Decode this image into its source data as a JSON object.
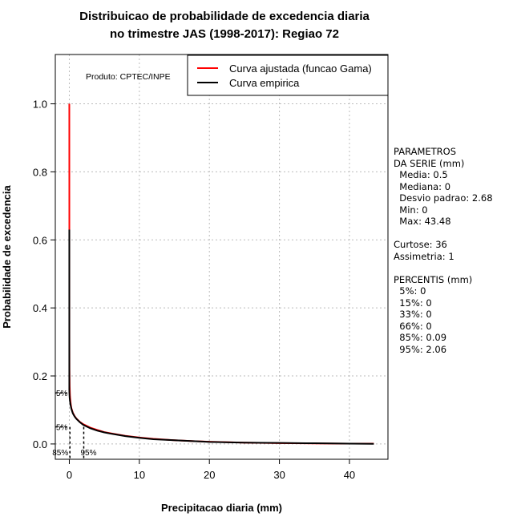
{
  "chart_data": {
    "type": "line",
    "title_line1": "Distribuicao de probabilidade de excedencia diaria",
    "title_line2": "no trimestre JAS (1998-2017): Regiao 72",
    "xlabel": "Precipitacao diaria (mm)",
    "ylabel": "Probabilidade de excedencia",
    "xlim": [
      -2,
      45.5
    ],
    "ylim": [
      -0.045,
      1.145
    ],
    "xticks": [
      0,
      10,
      20,
      30,
      40
    ],
    "xtick_labels": [
      "0",
      "10",
      "20",
      "30",
      "40"
    ],
    "yticks": [
      0.0,
      0.2,
      0.4,
      0.6,
      0.8,
      1.0
    ],
    "ytick_labels": [
      "0.0",
      "0.2",
      "0.4",
      "0.6",
      "0.8",
      "1.0"
    ],
    "grid": true,
    "legend_position": "top-right",
    "product_note": "Produto: CPTEC/INPE",
    "series": [
      {
        "name": "Curva ajustada (funcao Gama)",
        "color": "#ff0000",
        "x": [
          0,
          0.01,
          0.02,
          0.05,
          0.1,
          0.2,
          0.3,
          0.5,
          0.75,
          1,
          1.5,
          2,
          3,
          4,
          5,
          6,
          8,
          10,
          12,
          15,
          18,
          20,
          25,
          30,
          35,
          40,
          43.48
        ],
        "y": [
          1.0,
          0.32,
          0.22,
          0.17,
          0.14,
          0.118,
          0.105,
          0.092,
          0.082,
          0.075,
          0.065,
          0.058,
          0.048,
          0.041,
          0.035,
          0.031,
          0.024,
          0.019,
          0.015,
          0.011,
          0.008,
          0.0065,
          0.004,
          0.0025,
          0.0015,
          0.001,
          0.0008
        ]
      },
      {
        "name": "Curva empirica",
        "color": "#000000",
        "x": [
          0,
          0,
          0.01,
          0.05,
          0.1,
          0.2,
          0.3,
          0.5,
          0.75,
          1,
          1.5,
          2,
          3,
          4,
          5,
          6,
          8,
          10,
          12,
          15,
          18,
          20,
          25,
          30,
          35,
          40,
          43.48
        ],
        "y": [
          0.63,
          0.16,
          0.15,
          0.135,
          0.125,
          0.112,
          0.103,
          0.09,
          0.081,
          0.074,
          0.064,
          0.056,
          0.046,
          0.039,
          0.034,
          0.03,
          0.023,
          0.018,
          0.014,
          0.011,
          0.008,
          0.006,
          0.004,
          0.003,
          0.002,
          0.001,
          0.0005
        ]
      }
    ],
    "percentile_markers": [
      {
        "label": "5%",
        "x": 0,
        "y": 0.15
      },
      {
        "label": "5%",
        "x": 0,
        "y": 0.05
      },
      {
        "label": "85%",
        "x": 0.09,
        "y": 0.0
      },
      {
        "label": "95%",
        "x": 2.06,
        "y": 0.0
      }
    ]
  },
  "side_panel": {
    "lines": [
      "PARAMETROS",
      "DA SERIE (mm)",
      "  Media: 0.5",
      "  Mediana: 0",
      "  Desvio padrao: 2.68",
      "  Min: 0",
      "  Max: 43.48",
      "",
      "Curtose: 36",
      "Assimetria: 1",
      "",
      "PERCENTIS (mm)",
      "  5%: 0",
      "  15%: 0",
      "  33%: 0",
      "  66%: 0",
      "  85%: 0.09",
      "  95%: 2.06"
    ]
  }
}
